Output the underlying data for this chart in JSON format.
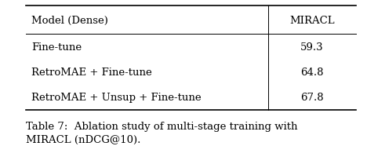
{
  "col_header": [
    "Model (Dense)",
    "MIRACL"
  ],
  "rows": [
    [
      "Fine-tune",
      "59.3"
    ],
    [
      "RetroMAE + Fine-tune",
      "64.8"
    ],
    [
      "RetroMAE + Unsup + Fine-tune",
      "67.8"
    ]
  ],
  "caption_bold": "Table 7: ",
  "caption_normal": " Ablation study of multi-stage training with\nMIRACL (nDCG@10).",
  "caption": "Table 7:  Ablation study of multi-stage training with\nMIRACL (nDCG@10).",
  "bg_color": "#ffffff",
  "text_color": "#000000",
  "figsize": [
    4.68,
    2.01
  ],
  "dpi": 100
}
